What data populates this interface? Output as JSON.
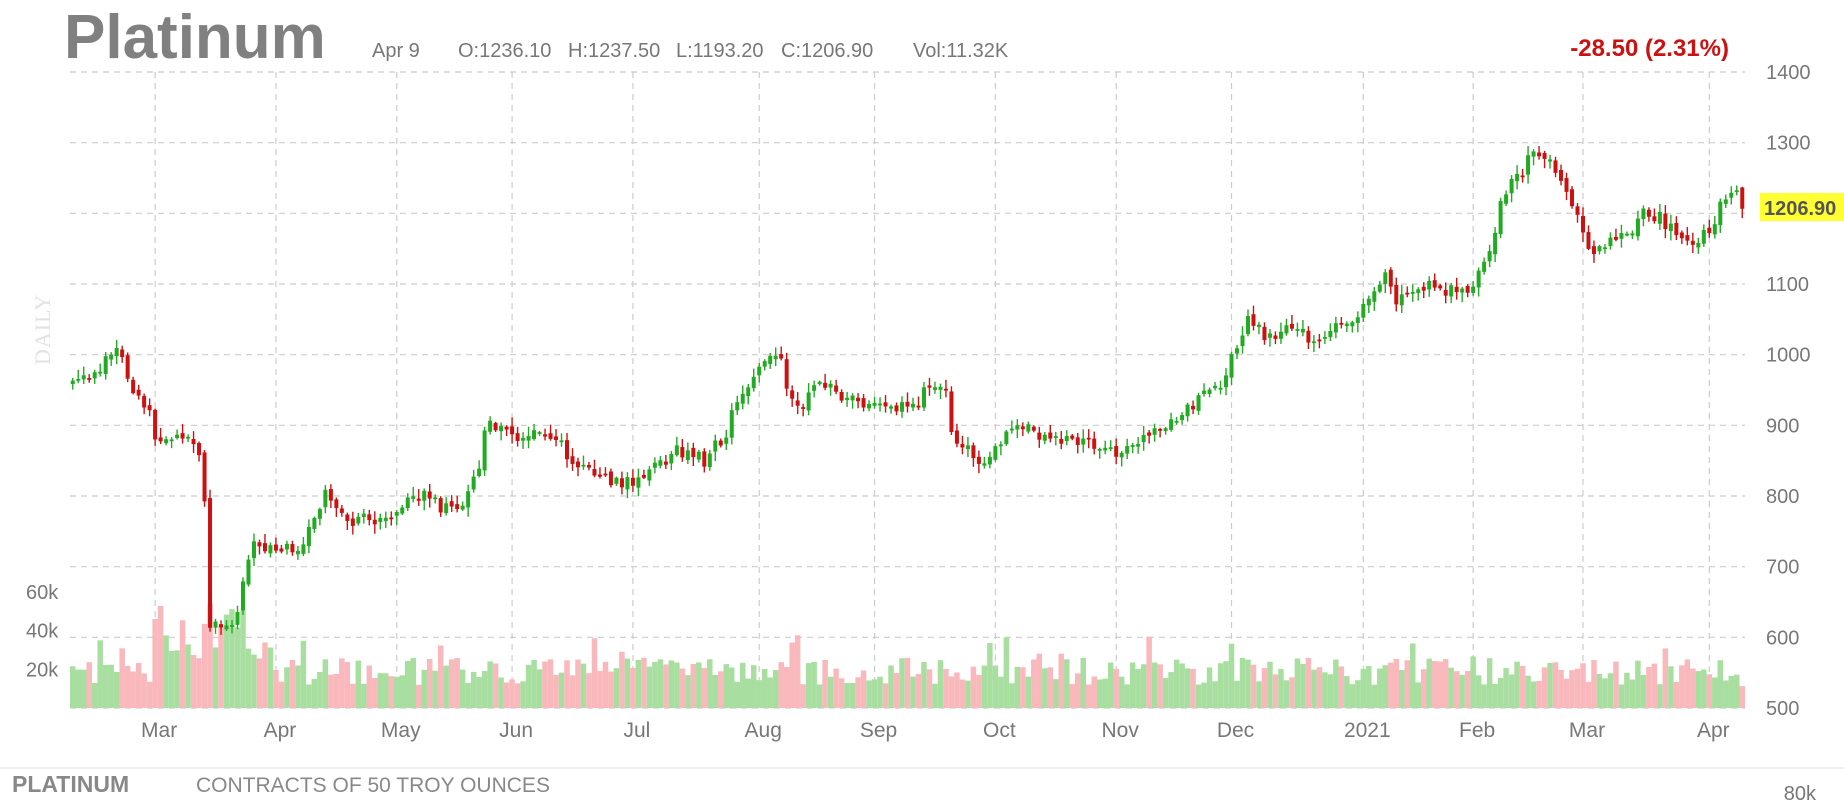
{
  "header": {
    "title": "Platinum",
    "date": "Apr 9",
    "open": "O:1236.10",
    "high": "H:1237.50",
    "low": "L:1193.20",
    "close": "C:1206.90",
    "volume": "Vol:11.32K",
    "change": "-28.50 (2.31%)",
    "change_color": "#cc1111"
  },
  "periodicity": "DAILY",
  "last_price_label": "1206.90",
  "last_price_color": "#ffff33",
  "footer": {
    "symbol": "PLATINUM",
    "description": "CONTRACTS OF 50 TROY OUNCES",
    "cutoff_tick": "80k"
  },
  "colors": {
    "up": "#22aa22",
    "down": "#cc1111",
    "vol_up": "#a8dfa0",
    "vol_down": "#f9b8bb",
    "grid": "#cccccc"
  },
  "chart_data": {
    "type": "candlestick",
    "x_axis_labels": [
      "Mar",
      "Apr",
      "May",
      "Jun",
      "Jul",
      "Aug",
      "Sep",
      "Oct",
      "Nov",
      "Dec",
      "2021",
      "Feb",
      "Mar",
      "Apr"
    ],
    "y_ticks": [
      "1400",
      "1300",
      "1200",
      "1100",
      "1000",
      "900",
      "800",
      "700",
      "600",
      "500"
    ],
    "ylim": [
      500,
      1400
    ],
    "volume_ticks": [
      "60k",
      "40k",
      "20k"
    ],
    "volume_ylim": [
      0,
      60000
    ],
    "grid": true,
    "last_close": 1206.9,
    "anchors": [
      [
        "2020-02-10",
        970
      ],
      [
        "2020-02-17",
        980
      ],
      [
        "2020-02-20",
        1015
      ],
      [
        "2020-02-24",
        965
      ],
      [
        "2020-03-02",
        875
      ],
      [
        "2020-03-09",
        890
      ],
      [
        "2020-03-12",
        860
      ],
      [
        "2020-03-16",
        620
      ],
      [
        "2020-03-19",
        610
      ],
      [
        "2020-03-23",
        640
      ],
      [
        "2020-03-26",
        735
      ],
      [
        "2020-04-06",
        720
      ],
      [
        "2020-04-14",
        800
      ],
      [
        "2020-04-21",
        765
      ],
      [
        "2020-04-28",
        770
      ],
      [
        "2020-05-05",
        790
      ],
      [
        "2020-05-08",
        805
      ],
      [
        "2020-05-13",
        785
      ],
      [
        "2020-05-19",
        790
      ],
      [
        "2020-05-26",
        905
      ],
      [
        "2020-06-01",
        880
      ],
      [
        "2020-06-09",
        890
      ],
      [
        "2020-06-16",
        845
      ],
      [
        "2020-06-23",
        825
      ],
      [
        "2020-06-30",
        820
      ],
      [
        "2020-07-07",
        840
      ],
      [
        "2020-07-13",
        865
      ],
      [
        "2020-07-20",
        850
      ],
      [
        "2020-07-27",
        920
      ],
      [
        "2020-07-31",
        960
      ],
      [
        "2020-08-06",
        1000
      ],
      [
        "2020-08-12",
        930
      ],
      [
        "2020-08-20",
        960
      ],
      [
        "2020-08-27",
        930
      ],
      [
        "2020-09-03",
        925
      ],
      [
        "2020-09-10",
        930
      ],
      [
        "2020-09-17",
        960
      ],
      [
        "2020-09-22",
        875
      ],
      [
        "2020-09-28",
        840
      ],
      [
        "2020-10-06",
        900
      ],
      [
        "2020-10-12",
        885
      ],
      [
        "2020-10-19",
        880
      ],
      [
        "2020-10-26",
        875
      ],
      [
        "2020-11-02",
        860
      ],
      [
        "2020-11-09",
        880
      ],
      [
        "2020-11-16",
        905
      ],
      [
        "2020-11-23",
        940
      ],
      [
        "2020-11-30",
        975
      ],
      [
        "2020-12-04",
        1050
      ],
      [
        "2020-12-10",
        1025
      ],
      [
        "2020-12-17",
        1040
      ],
      [
        "2020-12-21",
        1020
      ],
      [
        "2020-12-24",
        1020
      ],
      [
        "2021-01-05",
        1075
      ],
      [
        "2021-01-08",
        1115
      ],
      [
        "2021-01-12",
        1080
      ],
      [
        "2021-01-19",
        1100
      ],
      [
        "2021-01-26",
        1090
      ],
      [
        "2021-02-01",
        1100
      ],
      [
        "2021-02-09",
        1235
      ],
      [
        "2021-02-16",
        1280
      ],
      [
        "2021-02-22",
        1260
      ],
      [
        "2021-02-26",
        1190
      ],
      [
        "2021-03-03",
        1150
      ],
      [
        "2021-03-09",
        1160
      ],
      [
        "2021-03-15",
        1200
      ],
      [
        "2021-03-19",
        1195
      ],
      [
        "2021-03-24",
        1175
      ],
      [
        "2021-03-30",
        1160
      ],
      [
        "2021-04-05",
        1220
      ],
      [
        "2021-04-08",
        1235
      ],
      [
        "2021-04-09",
        1206.9
      ]
    ],
    "last_bar": {
      "date": "2021-04-09",
      "open": 1236.1,
      "high": 1237.5,
      "low": 1193.2,
      "close": 1206.9
    }
  }
}
